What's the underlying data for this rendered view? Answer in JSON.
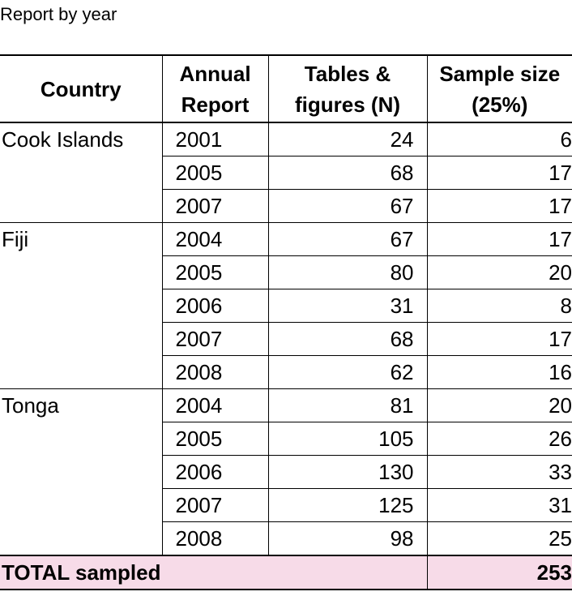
{
  "caption": "Report by year",
  "headers": {
    "country": "Country",
    "annual_report_1": "Annual",
    "annual_report_2": "Report",
    "tables_1": "Tables &",
    "tables_2": "figures (N)",
    "sample_1": "Sample size",
    "sample_2": "(25%)"
  },
  "groups": [
    {
      "country": "Cook Islands",
      "rows": [
        {
          "year": "2001",
          "tables": "24",
          "sample": "6"
        },
        {
          "year": "2005",
          "tables": "68",
          "sample": "17"
        },
        {
          "year": "2007",
          "tables": "67",
          "sample": "17"
        }
      ]
    },
    {
      "country": "Fiji",
      "rows": [
        {
          "year": "2004",
          "tables": "67",
          "sample": "17"
        },
        {
          "year": "2005",
          "tables": "80",
          "sample": "20"
        },
        {
          "year": "2006",
          "tables": "31",
          "sample": "8"
        },
        {
          "year": "2007",
          "tables": "68",
          "sample": "17"
        },
        {
          "year": "2008",
          "tables": "62",
          "sample": "16"
        }
      ]
    },
    {
      "country": "Tonga",
      "rows": [
        {
          "year": "2004",
          "tables": "81",
          "sample": "20"
        },
        {
          "year": "2005",
          "tables": "105",
          "sample": "26"
        },
        {
          "year": "2006",
          "tables": "130",
          "sample": "33"
        },
        {
          "year": "2007",
          "tables": "125",
          "sample": "31"
        },
        {
          "year": "2008",
          "tables": "98",
          "sample": "25"
        }
      ]
    }
  ],
  "total": {
    "label": "TOTAL sampled",
    "value": "253"
  },
  "colors": {
    "total_row_bg": "#f7dbe8"
  }
}
